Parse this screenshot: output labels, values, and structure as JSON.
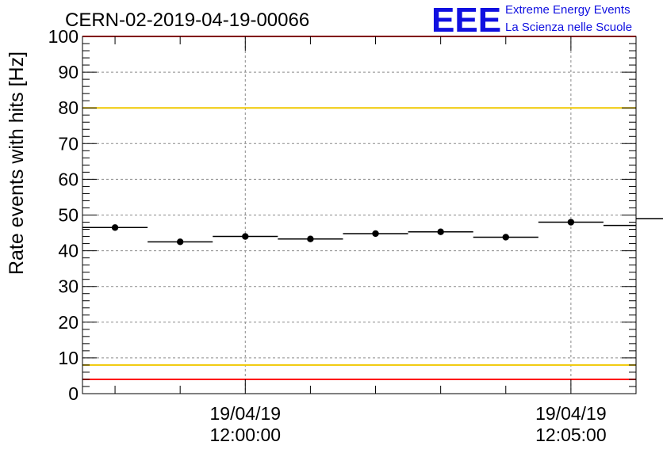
{
  "header": {
    "run_title": "CERN-02-2019-04-19-00066",
    "logo_text": "EEE",
    "logo_line1": "Extreme Energy Events",
    "logo_line2": "La Scienza nelle Scuole"
  },
  "colors": {
    "logo": "#1010e0",
    "threshold_red": "#ff0000",
    "threshold_yellow": "#f0c800",
    "grid": "#8a8a8a",
    "data": "#000000"
  },
  "chart_data": {
    "type": "scatter",
    "title": "CERN-02-2019-04-19-00066",
    "xlabel": "",
    "ylabel": "Rate events with hits [Hz]",
    "ylim": [
      0,
      100
    ],
    "yticks": [
      0,
      10,
      20,
      30,
      40,
      50,
      60,
      70,
      80,
      90,
      100
    ],
    "xlim_seconds_after_first_label": [
      -150,
      360
    ],
    "xtick_labels": [
      {
        "date": "19/04/19",
        "time": "12:00:00",
        "offset_s": 0
      },
      {
        "date": "19/04/19",
        "time": "12:05:00",
        "offset_s": 300
      }
    ],
    "grid": true,
    "bin_width_s": 60,
    "bin_centers_s": [
      -120,
      -60,
      0,
      60,
      120,
      180,
      240,
      300,
      360,
      420
    ],
    "x": [
      "11:58:00",
      "11:59:00",
      "12:00:00",
      "12:01:00",
      "12:02:00",
      "12:03:00",
      "12:04:00",
      "12:05:00",
      "12:06:00",
      "12:07:00"
    ],
    "values": [
      46.5,
      42.5,
      44.0,
      43.3,
      44.8,
      45.3,
      43.8,
      48.0,
      47.1,
      49.0
    ],
    "reference_lines": [
      {
        "value": 100,
        "color": "red"
      },
      {
        "value": 80,
        "color": "yellow"
      },
      {
        "value": 8,
        "color": "yellow"
      },
      {
        "value": 4,
        "color": "red"
      }
    ]
  }
}
